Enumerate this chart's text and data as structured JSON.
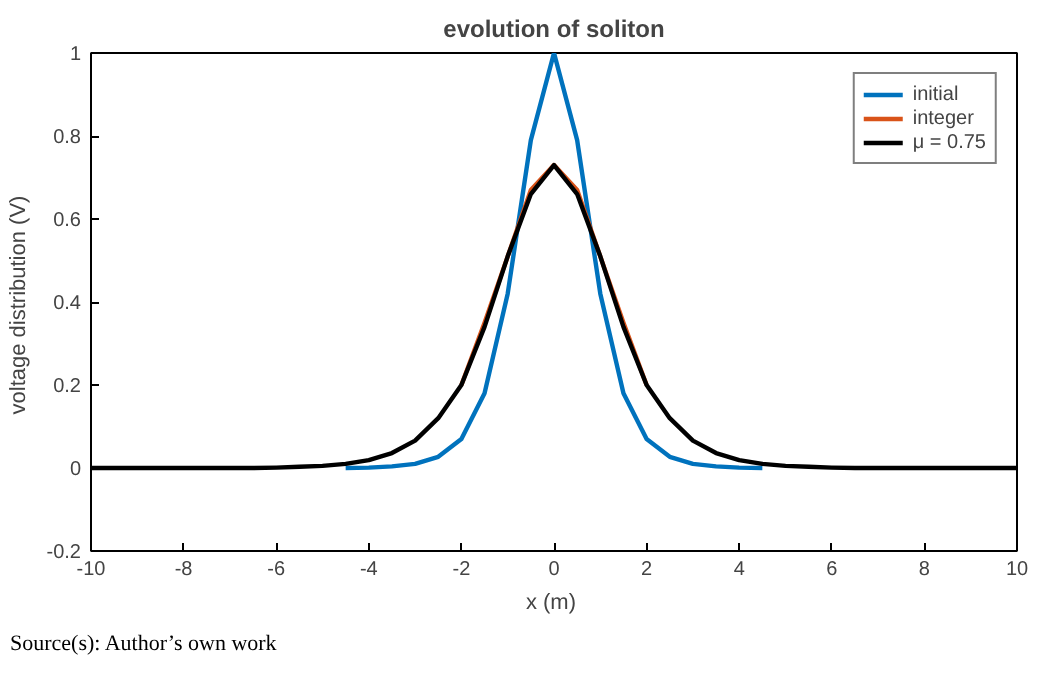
{
  "chart_data": {
    "type": "line",
    "title": "evolution of soliton",
    "xlabel": "x  (m)",
    "ylabel": "voltage distribution  (V)",
    "x": [
      -10,
      -9.5,
      -9,
      -8.5,
      -8,
      -7.5,
      -7,
      -6.5,
      -6,
      -5.5,
      -5,
      -4.5,
      -4,
      -3.5,
      -3,
      -2.5,
      -2,
      -1.5,
      -1,
      -0.5,
      0,
      0.5,
      1,
      1.5,
      2,
      2.5,
      3,
      3.5,
      4,
      4.5,
      5,
      5.5,
      6,
      6.5,
      7,
      7.5,
      8,
      8.5,
      9,
      9.5,
      10
    ],
    "series": [
      {
        "name": "initial",
        "color": "#0072bd",
        "values": [
          null,
          null,
          null,
          null,
          null,
          null,
          null,
          null,
          null,
          null,
          null,
          0,
          0.001,
          0.004,
          0.01,
          0.027,
          0.07,
          0.18,
          0.42,
          0.79,
          1,
          0.79,
          0.42,
          0.18,
          0.07,
          0.027,
          0.01,
          0.004,
          0.001,
          0,
          null,
          null,
          null,
          null,
          null,
          null,
          null,
          null,
          null,
          null,
          null
        ]
      },
      {
        "name": "integer",
        "color": "#d95319",
        "values": [
          null,
          null,
          null,
          null,
          null,
          null,
          null,
          null,
          null,
          null,
          null,
          null,
          null,
          null,
          null,
          null,
          0.2,
          0.35,
          0.51,
          0.67,
          0.73,
          0.67,
          0.51,
          0.35,
          0.2,
          null,
          null,
          null,
          null,
          null,
          null,
          null,
          null,
          null,
          null,
          null,
          null,
          null,
          null,
          null,
          null
        ]
      },
      {
        "name": "μ = 0.75",
        "color": "#000000",
        "values": [
          0,
          0,
          0,
          0,
          0,
          0,
          0,
          0,
          0.001,
          0.003,
          0.005,
          0.01,
          0.019,
          0.036,
          0.066,
          0.12,
          0.2,
          0.34,
          0.51,
          0.66,
          0.73,
          0.66,
          0.51,
          0.34,
          0.2,
          0.12,
          0.066,
          0.036,
          0.019,
          0.01,
          0.005,
          0.003,
          0.001,
          0,
          0,
          0,
          0,
          0,
          0,
          0,
          0
        ]
      }
    ],
    "xlim": [
      -10,
      10
    ],
    "ylim": [
      -0.2,
      1
    ],
    "xticks": [
      -10,
      -8,
      -6,
      -4,
      -2,
      0,
      2,
      4,
      6,
      8,
      10
    ],
    "yticks": [
      -0.2,
      0,
      0.2,
      0.4,
      0.6,
      0.8,
      1
    ],
    "grid": false,
    "legend": "top right",
    "line_style": "solid",
    "marker": "none",
    "annotations": [
      "Source(s): Author’s own work"
    ]
  }
}
